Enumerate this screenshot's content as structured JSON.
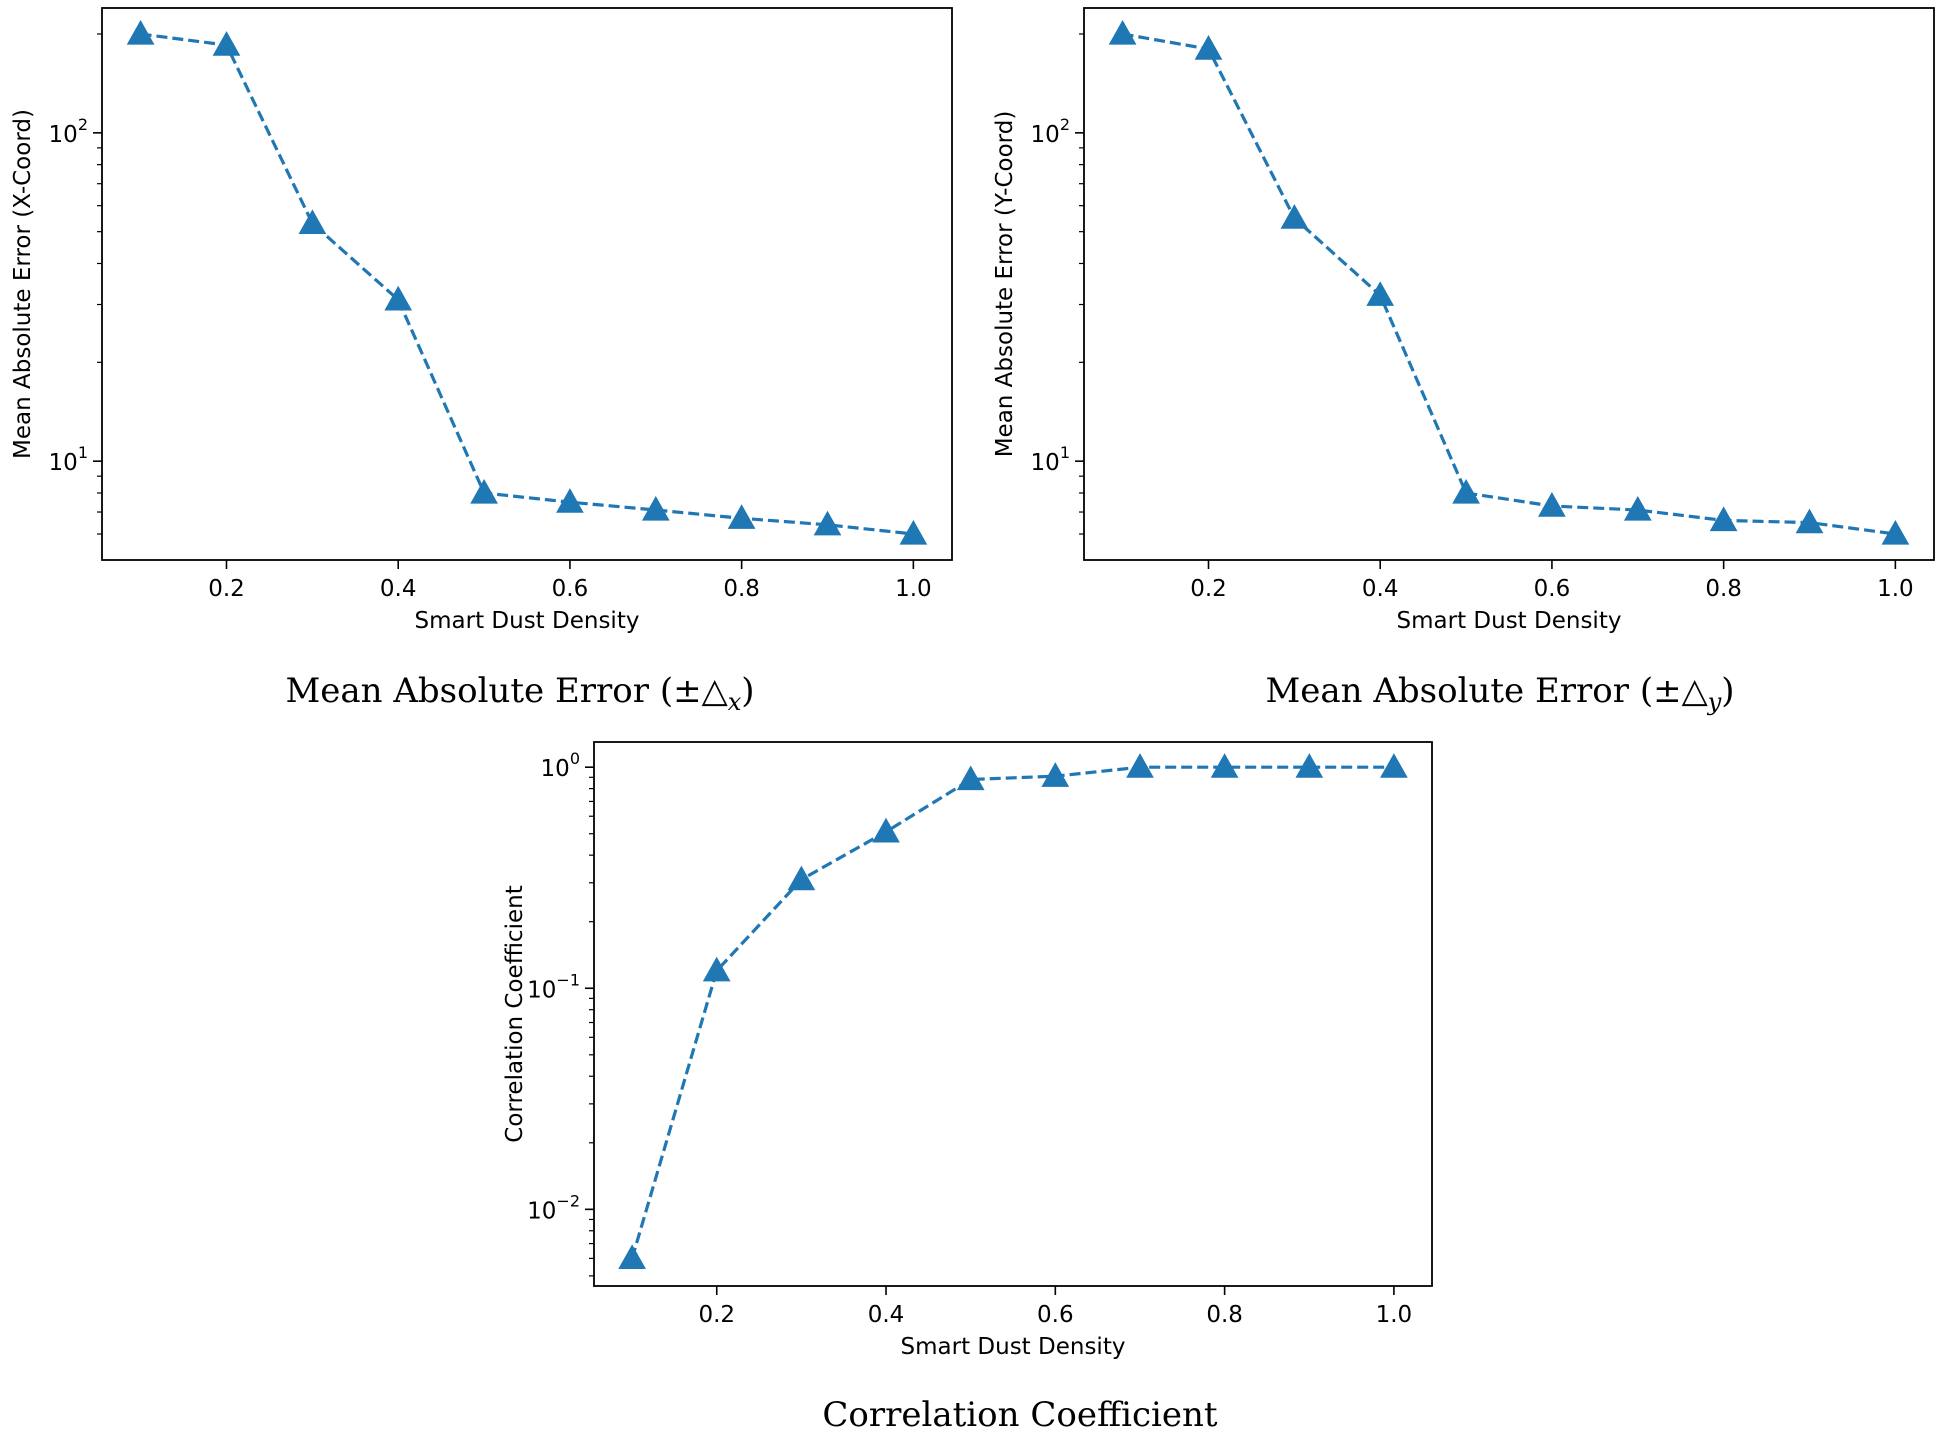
{
  "chart_data": [
    {
      "type": "line",
      "caption": {
        "prefix": "Mean Absolute Error (±△",
        "sub": "x",
        "suffix": ")"
      },
      "xlabel": "Smart Dust Density",
      "ylabel": "Mean Absolute Error (X-Coord)",
      "yscale": "log",
      "xlim": [
        0.055,
        1.045
      ],
      "ylim": [
        5,
        240
      ],
      "x_ticks": [
        0.2,
        0.4,
        0.6,
        0.8,
        1.0
      ],
      "x_tick_labels": [
        "0.2",
        "0.4",
        "0.6",
        "0.8",
        "1.0"
      ],
      "y_ticks": [
        {
          "value": 100,
          "base": "10",
          "exp": "2"
        },
        {
          "value": 10,
          "base": "10",
          "exp": "1"
        }
      ],
      "y_minor_ticks": [
        6,
        7,
        8,
        9,
        20,
        30,
        40,
        50,
        60,
        70,
        80,
        90,
        200
      ],
      "grid": false,
      "series": [
        {
          "line_style": "dashed",
          "marker": "triangle-up",
          "color": "#1f77b4",
          "x": [
            0.1,
            0.2,
            0.3,
            0.4,
            0.5,
            0.6,
            0.7,
            0.8,
            0.9,
            1.0
          ],
          "y": [
            200,
            185,
            53,
            31,
            8.0,
            7.5,
            7.1,
            6.7,
            6.4,
            6.0
          ]
        }
      ]
    },
    {
      "type": "line",
      "caption": {
        "prefix": "Mean Absolute Error (±△",
        "sub": "y",
        "suffix": ")"
      },
      "xlabel": "Smart Dust Density",
      "ylabel": "Mean Absolute Error (Y-Coord)",
      "yscale": "log",
      "xlim": [
        0.055,
        1.045
      ],
      "ylim": [
        5,
        240
      ],
      "x_ticks": [
        0.2,
        0.4,
        0.6,
        0.8,
        1.0
      ],
      "x_tick_labels": [
        "0.2",
        "0.4",
        "0.6",
        "0.8",
        "1.0"
      ],
      "y_ticks": [
        {
          "value": 100,
          "base": "10",
          "exp": "2"
        },
        {
          "value": 10,
          "base": "10",
          "exp": "1"
        }
      ],
      "y_minor_ticks": [
        6,
        7,
        8,
        9,
        20,
        30,
        40,
        50,
        60,
        70,
        80,
        90,
        200
      ],
      "grid": false,
      "series": [
        {
          "line_style": "dashed",
          "marker": "triangle-up",
          "color": "#1f77b4",
          "x": [
            0.1,
            0.2,
            0.3,
            0.4,
            0.5,
            0.6,
            0.7,
            0.8,
            0.9,
            1.0
          ],
          "y": [
            200,
            180,
            55,
            32,
            8.0,
            7.3,
            7.1,
            6.6,
            6.5,
            6.0
          ]
        }
      ]
    },
    {
      "type": "line",
      "caption": {
        "prefix": "Correlation Coefficient",
        "sub": "",
        "suffix": ""
      },
      "xlabel": "Smart Dust Density",
      "ylabel": "Correlation Coefficient",
      "yscale": "log",
      "xlim": [
        0.055,
        1.045
      ],
      "ylim": [
        0.0045,
        1.3
      ],
      "x_ticks": [
        0.2,
        0.4,
        0.6,
        0.8,
        1.0
      ],
      "x_tick_labels": [
        "0.2",
        "0.4",
        "0.6",
        "0.8",
        "1.0"
      ],
      "y_ticks": [
        {
          "value": 1,
          "base": "10",
          "exp": "0"
        },
        {
          "value": 0.1,
          "base": "10",
          "exp": "−1"
        },
        {
          "value": 0.01,
          "base": "10",
          "exp": "−2"
        }
      ],
      "y_minor_ticks": [
        0.005,
        0.006,
        0.007,
        0.008,
        0.009,
        0.02,
        0.03,
        0.04,
        0.05,
        0.06,
        0.07,
        0.08,
        0.09,
        0.2,
        0.3,
        0.4,
        0.5,
        0.6,
        0.7,
        0.8,
        0.9
      ],
      "grid": false,
      "series": [
        {
          "line_style": "dashed",
          "marker": "triangle-up",
          "color": "#1f77b4",
          "x": [
            0.1,
            0.2,
            0.3,
            0.4,
            0.5,
            0.6,
            0.7,
            0.8,
            0.9,
            1.0
          ],
          "y": [
            0.006,
            0.12,
            0.31,
            0.51,
            0.88,
            0.91,
            1.0,
            1.0,
            1.0,
            1.0
          ]
        }
      ]
    }
  ]
}
